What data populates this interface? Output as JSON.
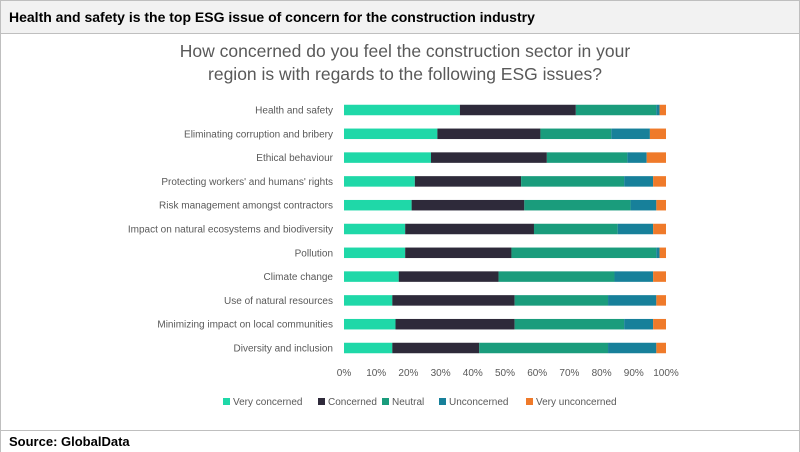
{
  "header": {
    "title": "Health and safety is the top ESG issue of concern for the construction industry"
  },
  "footer": {
    "source": "Source: GlobalData"
  },
  "chart_data": {
    "type": "bar",
    "orientation": "horizontal",
    "stacked": true,
    "title": "How concerned do you feel the construction sector in your region is with regards to the following ESG issues?",
    "title_lines": [
      "How concerned do you feel the construction sector in your",
      "region is with regards to the following ESG issues?"
    ],
    "categories": [
      "Health and safety",
      "Eliminating corruption and bribery",
      "Ethical behaviour",
      "Protecting workers' and humans' rights",
      "Risk management amongst contractors",
      "Impact on natural ecosystems and biodiversity",
      "Pollution",
      "Climate change",
      "Use of natural resources",
      "Minimizing impact on local communities",
      "Diversity and inclusion"
    ],
    "series": [
      {
        "name": "Very concerned",
        "color": "#1fd8a8",
        "values": [
          36,
          29,
          27,
          22,
          21,
          19,
          19,
          17,
          15,
          16,
          15
        ]
      },
      {
        "name": "Concerned",
        "color": "#2e2a3a",
        "values": [
          36,
          32,
          36,
          33,
          35,
          40,
          33,
          31,
          38,
          37,
          27
        ]
      },
      {
        "name": "Neutral",
        "color": "#1a9c7c",
        "values": [
          25,
          22,
          25,
          32,
          33,
          26,
          45,
          36,
          29,
          34,
          40
        ]
      },
      {
        "name": "Unconcerned",
        "color": "#17809a",
        "values": [
          1,
          12,
          6,
          9,
          8,
          11,
          1,
          12,
          15,
          9,
          15
        ]
      },
      {
        "name": "Very unconcerned",
        "color": "#ef7a2a",
        "values": [
          2,
          5,
          6,
          4,
          3,
          4,
          2,
          4,
          3,
          4,
          3
        ]
      }
    ],
    "xlim": [
      0,
      100
    ],
    "x_ticks": [
      "0%",
      "10%",
      "20%",
      "30%",
      "40%",
      "50%",
      "60%",
      "70%",
      "80%",
      "90%",
      "100%"
    ],
    "grid": false,
    "legend_position": "bottom"
  }
}
